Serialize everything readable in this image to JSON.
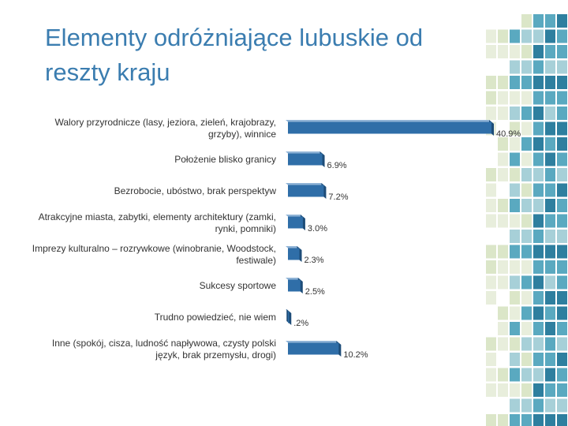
{
  "chart_data": {
    "type": "bar",
    "orientation": "horizontal",
    "title": "Elementy odróżniające lubuskie od reszty kraju",
    "categories": [
      "Walory przyrodnicze (lasy, jeziora, zieleń, krajobrazy, grzyby), winnice",
      "Położenie blisko granicy",
      "Bezrobocie, ubóstwo, brak perspektyw",
      "Atrakcyjne miasta, zabytki, elementy architektury (zamki, rynki, pomniki)",
      "Imprezy kulturalno – rozrywkowe (winobranie, Woodstock, festiwale)",
      "Sukcesy sportowe",
      "Trudno powiedzieć, nie wiem",
      "Inne (spokój, cisza, ludność napływowa, czysty polski język, brak przemysłu, drogi)"
    ],
    "values": [
      40.9,
      6.9,
      7.2,
      3.0,
      2.3,
      2.5,
      0.2,
      10.2
    ],
    "value_labels": [
      "40.9%",
      "6.9%",
      "7.2%",
      "3.0%",
      "2.3%",
      "2.5%",
      ".2%",
      "10.2%"
    ],
    "color": "#2f6ea8"
  }
}
